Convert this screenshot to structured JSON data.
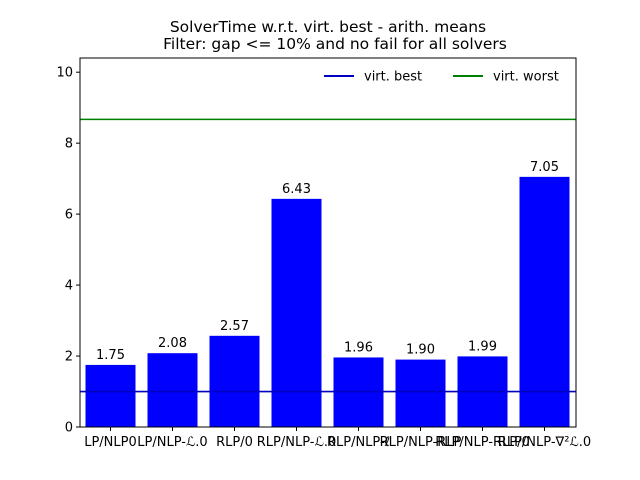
{
  "chart_data": {
    "type": "bar",
    "title": "SolverTime w.r.t. virt. best - arith. means",
    "subtitle": "Filter: gap <= 10% and no fail for all solvers",
    "categories": [
      "LP/NLP0",
      "LP/NLP-ℒ.0",
      "RLP/0",
      "RLP/NLP-ℒ.0",
      "RLP/NLP-ℓ",
      "RLP/NLP-RLP",
      "RLP/NLP-RLP/0",
      "RLP/NLP-∇²ℒ.0"
    ],
    "values": [
      1.75,
      2.08,
      2.57,
      6.43,
      1.96,
      1.9,
      1.99,
      7.05
    ],
    "value_labels": [
      "1.75",
      "2.08",
      "2.57",
      "6.43",
      "1.96",
      "1.90",
      "1.99",
      "7.05"
    ],
    "bar_color": "#0000ff",
    "ylim": [
      0,
      10.4
    ],
    "yticks": [
      0,
      2,
      4,
      6,
      8,
      10
    ],
    "xlabel": "",
    "ylabel": "",
    "grid": false,
    "reference_lines": [
      {
        "name": "virt. best",
        "value": 1.0,
        "color": "#0000bf"
      },
      {
        "name": "virt. worst",
        "value": 8.67,
        "color": "#008000"
      }
    ],
    "legend": {
      "position": "top-right",
      "entries": [
        "virt. best",
        "virt. worst"
      ]
    }
  }
}
